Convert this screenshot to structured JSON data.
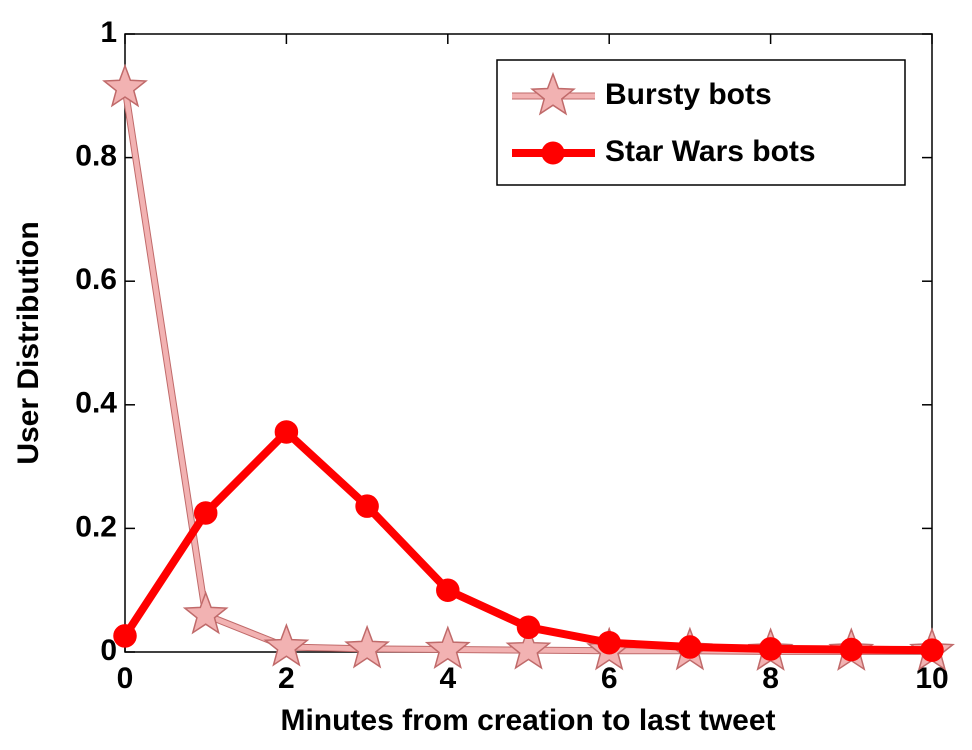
{
  "chart_data": {
    "type": "line",
    "x_label": "Minutes from creation to last tweet",
    "y_label": "User Distribution",
    "x": [
      0,
      1,
      2,
      3,
      4,
      5,
      6,
      7,
      8,
      9,
      10
    ],
    "series": [
      {
        "name": "Bursty bots",
        "color": "#f2b2b2",
        "marker_edge": "#c06a6a",
        "marker": "star",
        "values": [
          0.913,
          0.06,
          0.008,
          0.005,
          0.004,
          0.003,
          0.002,
          0.002,
          0.001,
          0.001,
          0.001
        ]
      },
      {
        "name": "Star Wars bots",
        "color": "#ff0000",
        "marker_edge": "#ff0000",
        "marker": "circle",
        "values": [
          0.026,
          0.225,
          0.356,
          0.236,
          0.1,
          0.04,
          0.015,
          0.008,
          0.005,
          0.004,
          0.003
        ]
      }
    ],
    "xlim": [
      0,
      10
    ],
    "ylim": [
      0,
      1
    ],
    "xticks": [
      0,
      2,
      4,
      6,
      8,
      10
    ],
    "yticks": [
      0,
      0.2,
      0.4,
      0.6,
      0.8,
      1
    ],
    "legend": "upper right",
    "grid": false
  }
}
